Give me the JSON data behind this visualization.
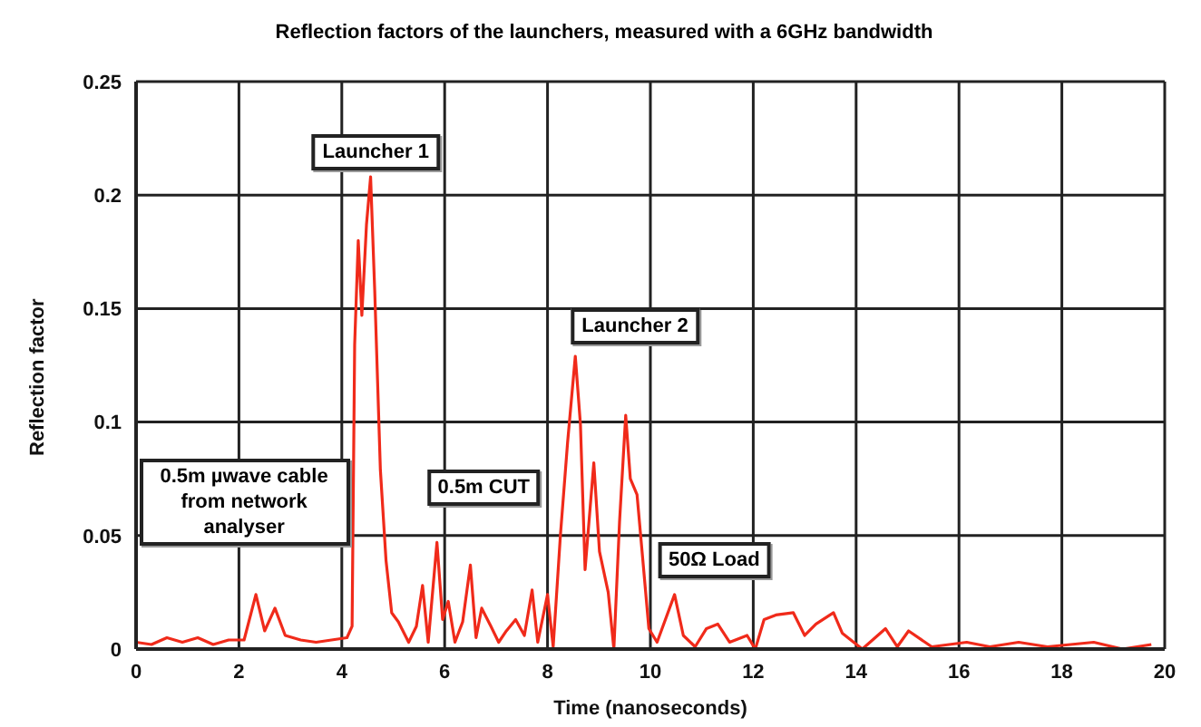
{
  "chart_data": {
    "type": "line",
    "title": "Reflection factors of the launchers, measured with a 6GHz bandwidth",
    "xlabel": "Time (nanoseconds)",
    "ylabel": "Reflection factor",
    "xlim": [
      0,
      20
    ],
    "xticks": [
      0,
      2,
      4,
      6,
      8,
      10,
      12,
      14,
      16,
      18,
      20
    ],
    "ylim": [
      0,
      0.25
    ],
    "yticks": [
      0,
      0.05,
      0.1,
      0.15,
      0.2,
      0.25
    ],
    "grid": true,
    "marker": "none",
    "line_style": "solid",
    "series": [
      {
        "color": "#f02a1a",
        "x": [
          0,
          0.3,
          0.6,
          0.9,
          1.2,
          1.5,
          1.8,
          2.1,
          2.33,
          2.5,
          2.7,
          2.9,
          3.2,
          3.5,
          3.8,
          4.1,
          4.2,
          4.25,
          4.32,
          4.39,
          4.48,
          4.56,
          4.64,
          4.75,
          4.86,
          4.97,
          5.1,
          5.3,
          5.45,
          5.57,
          5.68,
          5.85,
          5.96,
          6.07,
          6.2,
          6.35,
          6.5,
          6.61,
          6.72,
          6.9,
          7.05,
          7.2,
          7.38,
          7.55,
          7.7,
          7.81,
          8.0,
          8.11,
          8.25,
          8.39,
          8.54,
          8.64,
          8.73,
          8.9,
          9.01,
          9.18,
          9.29,
          9.4,
          9.52,
          9.61,
          9.74,
          9.85,
          9.97,
          10.13,
          10.47,
          10.64,
          10.87,
          11.09,
          11.31,
          11.54,
          11.88,
          12.04,
          12.21,
          12.44,
          12.78,
          13.0,
          13.22,
          13.56,
          13.73,
          14.12,
          14.57,
          14.8,
          15.02,
          15.47,
          16.15,
          16.6,
          17.16,
          17.72,
          18.62,
          19.18,
          19.74
        ],
        "values": [
          0.003,
          0.002,
          0.005,
          0.003,
          0.005,
          0.002,
          0.004,
          0.004,
          0.024,
          0.008,
          0.018,
          0.006,
          0.004,
          0.003,
          0.004,
          0.005,
          0.01,
          0.134,
          0.18,
          0.147,
          0.187,
          0.208,
          0.158,
          0.079,
          0.039,
          0.016,
          0.012,
          0.003,
          0.01,
          0.028,
          0.003,
          0.047,
          0.013,
          0.021,
          0.003,
          0.012,
          0.037,
          0.005,
          0.018,
          0.01,
          0.003,
          0.008,
          0.013,
          0.006,
          0.026,
          0.003,
          0.024,
          0.001,
          0.05,
          0.091,
          0.129,
          0.099,
          0.035,
          0.082,
          0.043,
          0.025,
          0,
          0.056,
          0.103,
          0.075,
          0.068,
          0.04,
          0.009,
          0.003,
          0.024,
          0.006,
          0.001,
          0.009,
          0.011,
          0.003,
          0.006,
          0,
          0.013,
          0.015,
          0.016,
          0.006,
          0.011,
          0.016,
          0.007,
          0,
          0.009,
          0.001,
          0.008,
          0.001,
          0.003,
          0.001,
          0.003,
          0.001,
          0.003,
          0,
          0.002
        ]
      }
    ],
    "annotations": [
      "Launcher 1",
      "0.5m µwave cable from network analyser",
      "0.5m CUT",
      "Launcher 2",
      "50Ω Load"
    ]
  }
}
